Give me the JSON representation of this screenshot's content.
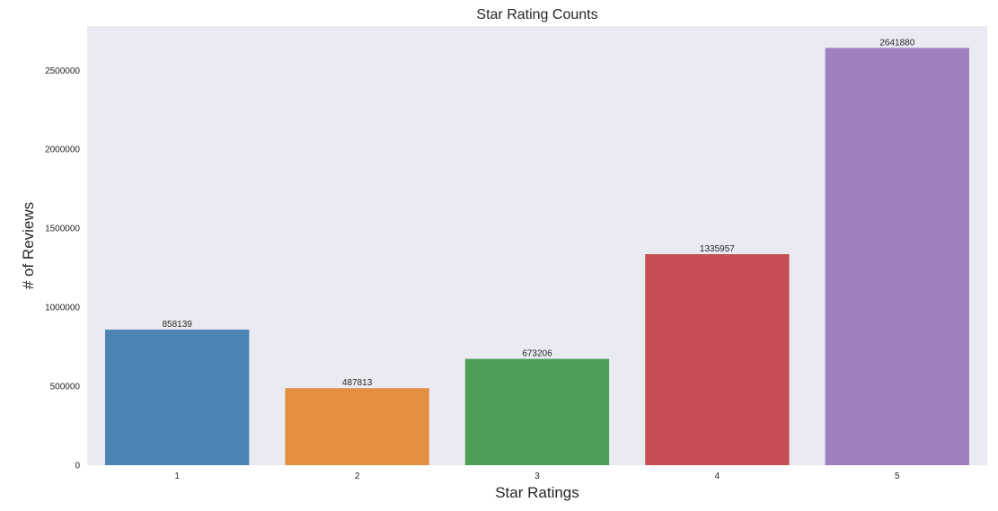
{
  "chart_data": {
    "type": "bar",
    "title": "Star Rating Counts",
    "xlabel": "Star Ratings",
    "ylabel": "# of Reviews",
    "categories": [
      "1",
      "2",
      "3",
      "4",
      "5"
    ],
    "values": [
      858139,
      487813,
      673206,
      1335957,
      2641880
    ],
    "data_labels": [
      "858139",
      "487813",
      "673206",
      "1335957",
      "2641880"
    ],
    "colors": [
      "#4c84b3",
      "#e38e41",
      "#4e9f58",
      "#c44e52",
      "#9e80be"
    ],
    "ylim": [
      0,
      2780000
    ],
    "yticks": [
      0,
      500000,
      1000000,
      1500000,
      2000000,
      2500000
    ],
    "ytick_labels": [
      "0",
      "500000",
      "1000000",
      "1500000",
      "2000000",
      "2500000"
    ],
    "grid": false,
    "background": "#eaeaf2"
  }
}
